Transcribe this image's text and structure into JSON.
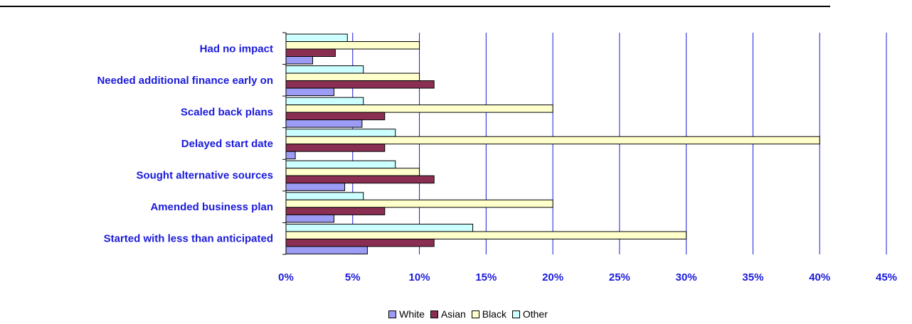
{
  "chart_data": {
    "type": "bar",
    "orientation": "horizontal",
    "categories": [
      "Had no impact",
      "Needed additional finance early on",
      "Scaled back plans",
      "Delayed start date",
      "Sought alternative sources",
      "Amended business plan",
      "Started with less than anticipated"
    ],
    "series": [
      {
        "name": "White",
        "color": "#9c9cf6",
        "values": [
          2.0,
          3.6,
          5.7,
          0.7,
          4.4,
          3.6,
          6.1
        ]
      },
      {
        "name": "Asian",
        "color": "#8b2f52",
        "values": [
          3.7,
          11.1,
          7.4,
          7.4,
          11.1,
          7.4,
          11.1
        ]
      },
      {
        "name": "Black",
        "color": "#ffffcc",
        "values": [
          10,
          10,
          20,
          40,
          10,
          20,
          30
        ]
      },
      {
        "name": "Other",
        "color": "#ccffff",
        "values": [
          4.6,
          5.8,
          5.8,
          8.2,
          8.2,
          5.8,
          14.0
        ]
      }
    ],
    "xlim": [
      0,
      45
    ],
    "xticks": [
      "0%",
      "5%",
      "10%",
      "15%",
      "20%",
      "25%",
      "30%",
      "35%",
      "40%",
      "45%"
    ],
    "grid": true,
    "legend_position": "bottom",
    "gridline_color": "#1a1adc"
  }
}
